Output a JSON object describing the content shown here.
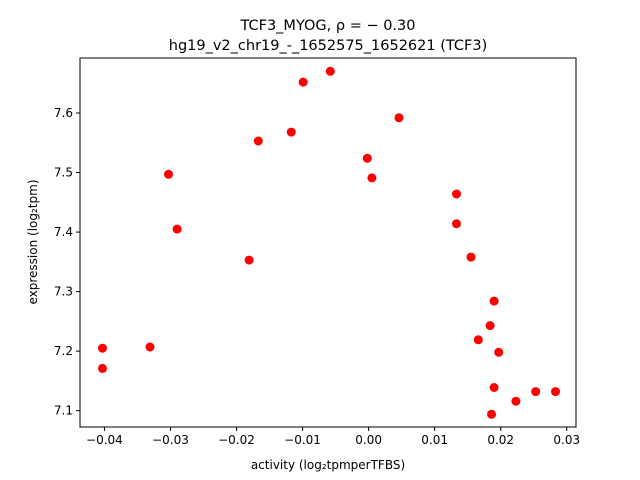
{
  "chart_data": {
    "type": "scatter",
    "title_line1": "TCF3_MYOG, ρ = − 0.30",
    "title_line2": "hg19_v2_chr19_-_1652575_1652621 (TCF3)",
    "xlabel": "activity (log₂tpmperTFBS)",
    "ylabel": "expression (log₂tpm)",
    "xlim": [
      -0.0437,
      0.0314
    ],
    "ylim": [
      7.0726,
      7.6924
    ],
    "x_ticks": [
      -0.04,
      -0.03,
      -0.02,
      -0.01,
      0.0,
      0.01,
      0.02,
      0.03
    ],
    "x_tick_labels": [
      "−0.04",
      "−0.03",
      "−0.02",
      "−0.01",
      "0.00",
      "0.01",
      "0.02",
      "0.03"
    ],
    "y_ticks": [
      7.1,
      7.2,
      7.3,
      7.4,
      7.5,
      7.6
    ],
    "y_tick_labels": [
      "7.1",
      "7.2",
      "7.3",
      "7.4",
      "7.5",
      "7.6"
    ],
    "marker_color": "#ff0000",
    "grid": false,
    "points": [
      {
        "x": -0.0403,
        "y": 7.205
      },
      {
        "x": -0.0403,
        "y": 7.171
      },
      {
        "x": -0.0331,
        "y": 7.207
      },
      {
        "x": -0.0303,
        "y": 7.497
      },
      {
        "x": -0.029,
        "y": 7.405
      },
      {
        "x": -0.0181,
        "y": 7.353
      },
      {
        "x": -0.0167,
        "y": 7.553
      },
      {
        "x": -0.0117,
        "y": 7.568
      },
      {
        "x": -0.0099,
        "y": 7.652
      },
      {
        "x": -0.0058,
        "y": 7.67
      },
      {
        "x": -0.0002,
        "y": 7.524
      },
      {
        "x": 0.0005,
        "y": 7.491
      },
      {
        "x": 0.0046,
        "y": 7.592
      },
      {
        "x": 0.0133,
        "y": 7.464
      },
      {
        "x": 0.0133,
        "y": 7.414
      },
      {
        "x": 0.0155,
        "y": 7.358
      },
      {
        "x": 0.0166,
        "y": 7.219
      },
      {
        "x": 0.0184,
        "y": 7.243
      },
      {
        "x": 0.0186,
        "y": 7.094
      },
      {
        "x": 0.019,
        "y": 7.284
      },
      {
        "x": 0.019,
        "y": 7.139
      },
      {
        "x": 0.0197,
        "y": 7.198
      },
      {
        "x": 0.0223,
        "y": 7.116
      },
      {
        "x": 0.0253,
        "y": 7.132
      },
      {
        "x": 0.0283,
        "y": 7.132
      }
    ]
  }
}
